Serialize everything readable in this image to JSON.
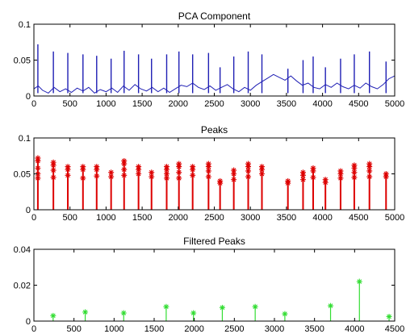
{
  "chart_data": [
    {
      "type": "line",
      "title": "PCA Component",
      "xlabel": "",
      "ylabel": "",
      "xlim": [
        0,
        5000
      ],
      "ylim": [
        0,
        0.1
      ],
      "xticks": [
        0,
        500,
        1000,
        1500,
        2000,
        2500,
        3000,
        3500,
        4000,
        4500,
        5000
      ],
      "xtick_labels": [
        "0",
        "500",
        "1000",
        "1500",
        "2000",
        "2500",
        "3000",
        "3500",
        "4000",
        "4500",
        "5000"
      ],
      "yticks": [
        0,
        0.05,
        0.1
      ],
      "ytick_labels": [
        "0",
        "0.05",
        "0.1"
      ],
      "grid": false,
      "color": "#1f1fb4",
      "spikes": [
        {
          "x": 55,
          "y": 0.072
        },
        {
          "x": 270,
          "y": 0.062
        },
        {
          "x": 470,
          "y": 0.06
        },
        {
          "x": 680,
          "y": 0.058
        },
        {
          "x": 870,
          "y": 0.056
        },
        {
          "x": 1070,
          "y": 0.052
        },
        {
          "x": 1250,
          "y": 0.063
        },
        {
          "x": 1450,
          "y": 0.058
        },
        {
          "x": 1630,
          "y": 0.052
        },
        {
          "x": 1840,
          "y": 0.058
        },
        {
          "x": 2010,
          "y": 0.062
        },
        {
          "x": 2200,
          "y": 0.058
        },
        {
          "x": 2420,
          "y": 0.06
        },
        {
          "x": 2580,
          "y": 0.04
        },
        {
          "x": 2770,
          "y": 0.055
        },
        {
          "x": 2970,
          "y": 0.062
        },
        {
          "x": 3160,
          "y": 0.058
        },
        {
          "x": 3520,
          "y": 0.038
        },
        {
          "x": 3730,
          "y": 0.05
        },
        {
          "x": 3870,
          "y": 0.055
        },
        {
          "x": 4040,
          "y": 0.04
        },
        {
          "x": 4250,
          "y": 0.052
        },
        {
          "x": 4440,
          "y": 0.058
        },
        {
          "x": 4650,
          "y": 0.062
        },
        {
          "x": 4880,
          "y": 0.048
        }
      ],
      "baseline": [
        [
          0,
          0.01
        ],
        [
          60,
          0.014
        ],
        [
          120,
          0.008
        ],
        [
          200,
          0.004
        ],
        [
          280,
          0.012
        ],
        [
          360,
          0.006
        ],
        [
          440,
          0.01
        ],
        [
          520,
          0.005
        ],
        [
          600,
          0.011
        ],
        [
          680,
          0.007
        ],
        [
          760,
          0.012
        ],
        [
          840,
          0.004
        ],
        [
          920,
          0.009
        ],
        [
          1000,
          0.006
        ],
        [
          1080,
          0.011
        ],
        [
          1160,
          0.005
        ],
        [
          1240,
          0.014
        ],
        [
          1320,
          0.008
        ],
        [
          1400,
          0.016
        ],
        [
          1480,
          0.01
        ],
        [
          1560,
          0.007
        ],
        [
          1640,
          0.012
        ],
        [
          1720,
          0.006
        ],
        [
          1800,
          0.011
        ],
        [
          1880,
          0.005
        ],
        [
          1960,
          0.01
        ],
        [
          2040,
          0.015
        ],
        [
          2120,
          0.013
        ],
        [
          2200,
          0.018
        ],
        [
          2280,
          0.012
        ],
        [
          2360,
          0.009
        ],
        [
          2440,
          0.014
        ],
        [
          2520,
          0.008
        ],
        [
          2600,
          0.012
        ],
        [
          2680,
          0.016
        ],
        [
          2760,
          0.01
        ],
        [
          2840,
          0.006
        ],
        [
          2920,
          0.012
        ],
        [
          3000,
          0.008
        ],
        [
          3080,
          0.015
        ],
        [
          3160,
          0.02
        ],
        [
          3240,
          0.025
        ],
        [
          3320,
          0.03
        ],
        [
          3400,
          0.026
        ],
        [
          3480,
          0.022
        ],
        [
          3560,
          0.028
        ],
        [
          3640,
          0.021
        ],
        [
          3720,
          0.015
        ],
        [
          3800,
          0.018
        ],
        [
          3880,
          0.012
        ],
        [
          3960,
          0.01
        ],
        [
          4040,
          0.016
        ],
        [
          4120,
          0.012
        ],
        [
          4200,
          0.018
        ],
        [
          4280,
          0.013
        ],
        [
          4360,
          0.01
        ],
        [
          4440,
          0.015
        ],
        [
          4520,
          0.011
        ],
        [
          4600,
          0.018
        ],
        [
          4680,
          0.013
        ],
        [
          4760,
          0.01
        ],
        [
          4840,
          0.016
        ],
        [
          4920,
          0.024
        ],
        [
          5000,
          0.028
        ]
      ]
    },
    {
      "type": "stem",
      "title": "Peaks",
      "xlabel": "",
      "ylabel": "",
      "xlim": [
        0,
        5000
      ],
      "ylim": [
        0,
        0.1
      ],
      "xticks": [
        0,
        500,
        1000,
        1500,
        2000,
        2500,
        3000,
        3500,
        4000,
        4500,
        5000
      ],
      "xtick_labels": [
        "0",
        "500",
        "1000",
        "1500",
        "2000",
        "2500",
        "3000",
        "3500",
        "4000",
        "4500",
        "5000"
      ],
      "yticks": [
        0,
        0.05,
        0.1
      ],
      "ytick_labels": [
        "0",
        "0.05",
        "0.1"
      ],
      "grid": false,
      "color": "#dd0000",
      "marker": "*",
      "clusters": [
        {
          "x": 55,
          "levels": [
            0.072,
            0.068,
            0.058,
            0.05,
            0.044
          ]
        },
        {
          "x": 270,
          "levels": [
            0.066,
            0.062,
            0.055,
            0.045
          ]
        },
        {
          "x": 470,
          "levels": [
            0.06,
            0.056,
            0.048
          ]
        },
        {
          "x": 680,
          "levels": [
            0.06,
            0.056,
            0.044
          ]
        },
        {
          "x": 870,
          "levels": [
            0.06,
            0.056,
            0.047
          ]
        },
        {
          "x": 1070,
          "levels": [
            0.052,
            0.046
          ]
        },
        {
          "x": 1250,
          "levels": [
            0.068,
            0.064,
            0.056,
            0.048
          ]
        },
        {
          "x": 1450,
          "levels": [
            0.06,
            0.056,
            0.05
          ]
        },
        {
          "x": 1630,
          "levels": [
            0.052,
            0.046
          ]
        },
        {
          "x": 1840,
          "levels": [
            0.06,
            0.056,
            0.05,
            0.044
          ]
        },
        {
          "x": 2010,
          "levels": [
            0.064,
            0.06,
            0.052,
            0.044
          ]
        },
        {
          "x": 2200,
          "levels": [
            0.06,
            0.056,
            0.048
          ]
        },
        {
          "x": 2420,
          "levels": [
            0.064,
            0.06,
            0.054,
            0.046
          ]
        },
        {
          "x": 2580,
          "levels": [
            0.04,
            0.037
          ]
        },
        {
          "x": 2770,
          "levels": [
            0.055,
            0.05,
            0.042
          ]
        },
        {
          "x": 2970,
          "levels": [
            0.064,
            0.06,
            0.054,
            0.046
          ]
        },
        {
          "x": 3160,
          "levels": [
            0.06,
            0.056,
            0.05
          ]
        },
        {
          "x": 3520,
          "levels": [
            0.04,
            0.037
          ]
        },
        {
          "x": 3730,
          "levels": [
            0.052,
            0.048,
            0.042
          ]
        },
        {
          "x": 3870,
          "levels": [
            0.058,
            0.054,
            0.045
          ]
        },
        {
          "x": 4040,
          "levels": [
            0.042,
            0.038
          ]
        },
        {
          "x": 4250,
          "levels": [
            0.054,
            0.05,
            0.044
          ]
        },
        {
          "x": 4440,
          "levels": [
            0.062,
            0.058,
            0.052,
            0.045
          ]
        },
        {
          "x": 4650,
          "levels": [
            0.064,
            0.06,
            0.054,
            0.046
          ]
        },
        {
          "x": 4880,
          "levels": [
            0.05,
            0.046
          ]
        }
      ]
    },
    {
      "type": "stem",
      "title": "Filtered Peaks",
      "xlabel": "",
      "ylabel": "",
      "xlim": [
        0,
        4500
      ],
      "ylim": [
        0,
        0.04
      ],
      "xticks": [
        0,
        500,
        1000,
        1500,
        2000,
        2500,
        3000,
        3500,
        4000,
        4500
      ],
      "xtick_labels": [
        "0",
        "500",
        "1000",
        "1500",
        "2000",
        "2500",
        "3000",
        "3500",
        "4000",
        "4500"
      ],
      "yticks": [
        0,
        0.02,
        0.04
      ],
      "ytick_labels": [
        "0",
        "0.02",
        "0.04"
      ],
      "grid": false,
      "color": "#33dd33",
      "marker": "*",
      "points": [
        {
          "x": 240,
          "y": 0.003
        },
        {
          "x": 640,
          "y": 0.005
        },
        {
          "x": 1120,
          "y": 0.0045
        },
        {
          "x": 1650,
          "y": 0.008
        },
        {
          "x": 1990,
          "y": 0.0045
        },
        {
          "x": 2350,
          "y": 0.0075
        },
        {
          "x": 2760,
          "y": 0.008
        },
        {
          "x": 3130,
          "y": 0.004
        },
        {
          "x": 3700,
          "y": 0.0085
        },
        {
          "x": 4060,
          "y": 0.022
        },
        {
          "x": 4430,
          "y": 0.0025
        }
      ]
    }
  ]
}
